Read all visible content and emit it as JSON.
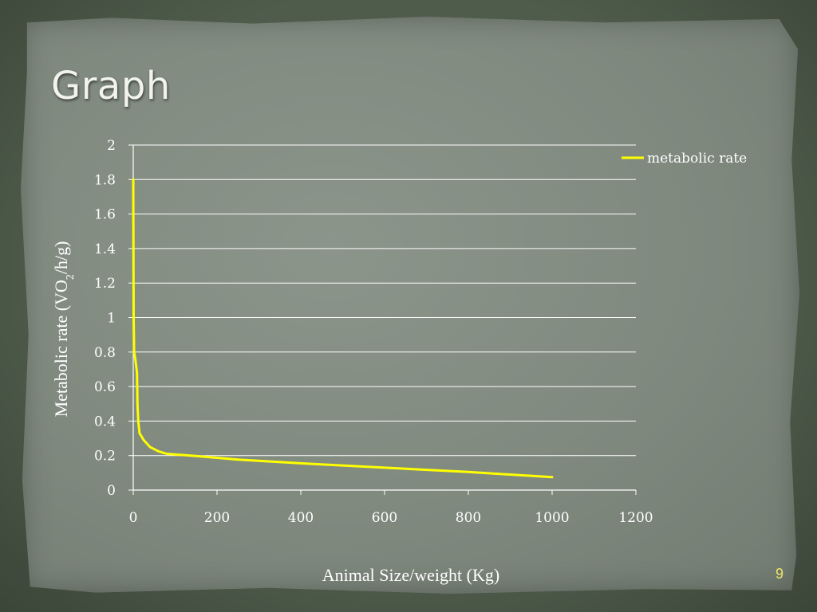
{
  "slide": {
    "title": "Graph",
    "page_number": "9"
  },
  "colors": {
    "background": "#4f5c4b",
    "paper": "#7f897e",
    "series_line": "#ffff00",
    "gridline": "#ffffff",
    "text": "#ffffff"
  },
  "chart_data": {
    "type": "line",
    "title": "",
    "xlabel": "Animal Size/weight  (Kg)",
    "ylabel_parts": [
      "Metabolic rate (VO",
      "2",
      "/h/g)"
    ],
    "xlim": [
      0,
      1200
    ],
    "ylim": [
      0,
      2
    ],
    "x_ticks": [
      "0",
      "200",
      "400",
      "600",
      "800",
      "1000",
      "1200"
    ],
    "y_ticks": [
      "0",
      "0.2",
      "0.4",
      "0.6",
      "0.8",
      "1",
      "1.2",
      "1.4",
      "1.6",
      "1.8",
      "2"
    ],
    "grid": "horizontal",
    "legend_position": "right",
    "series": [
      {
        "name": "metabolic rate",
        "x": [
          0.02,
          0.3,
          1,
          2,
          5,
          8,
          9,
          10,
          12,
          15,
          25,
          40,
          60,
          80,
          150,
          250,
          400,
          600,
          800,
          1000
        ],
        "y": [
          1.8,
          1.5,
          1.0,
          0.8,
          0.76,
          0.7,
          0.68,
          0.5,
          0.4,
          0.33,
          0.29,
          0.25,
          0.225,
          0.21,
          0.197,
          0.177,
          0.155,
          0.13,
          0.105,
          0.075
        ]
      }
    ]
  }
}
